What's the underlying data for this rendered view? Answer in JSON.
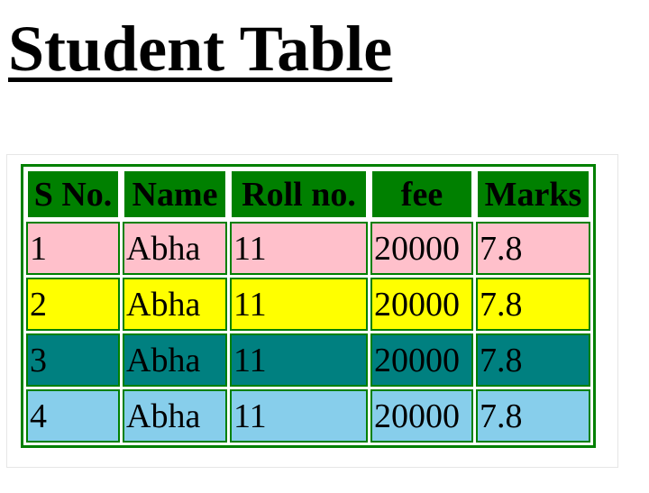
{
  "title": "Student Table",
  "table": {
    "headers": [
      "S No.",
      "Name",
      "Roll no.",
      "fee",
      "Marks"
    ],
    "rows": [
      {
        "cells": [
          "1",
          "Abha",
          "11",
          "20000",
          "7.8"
        ],
        "bg": "#ffc0cb"
      },
      {
        "cells": [
          "2",
          "Abha",
          "11",
          "20000",
          "7.8"
        ],
        "bg": "#ffff00"
      },
      {
        "cells": [
          "3",
          "Abha",
          "11",
          "20000",
          "7.8"
        ],
        "bg": "#008080"
      },
      {
        "cells": [
          "4",
          "Abha",
          "11",
          "20000",
          "7.8"
        ],
        "bg": "#87ceeb"
      }
    ]
  },
  "colors": {
    "border": "#008000",
    "header_bg": "#008000"
  }
}
